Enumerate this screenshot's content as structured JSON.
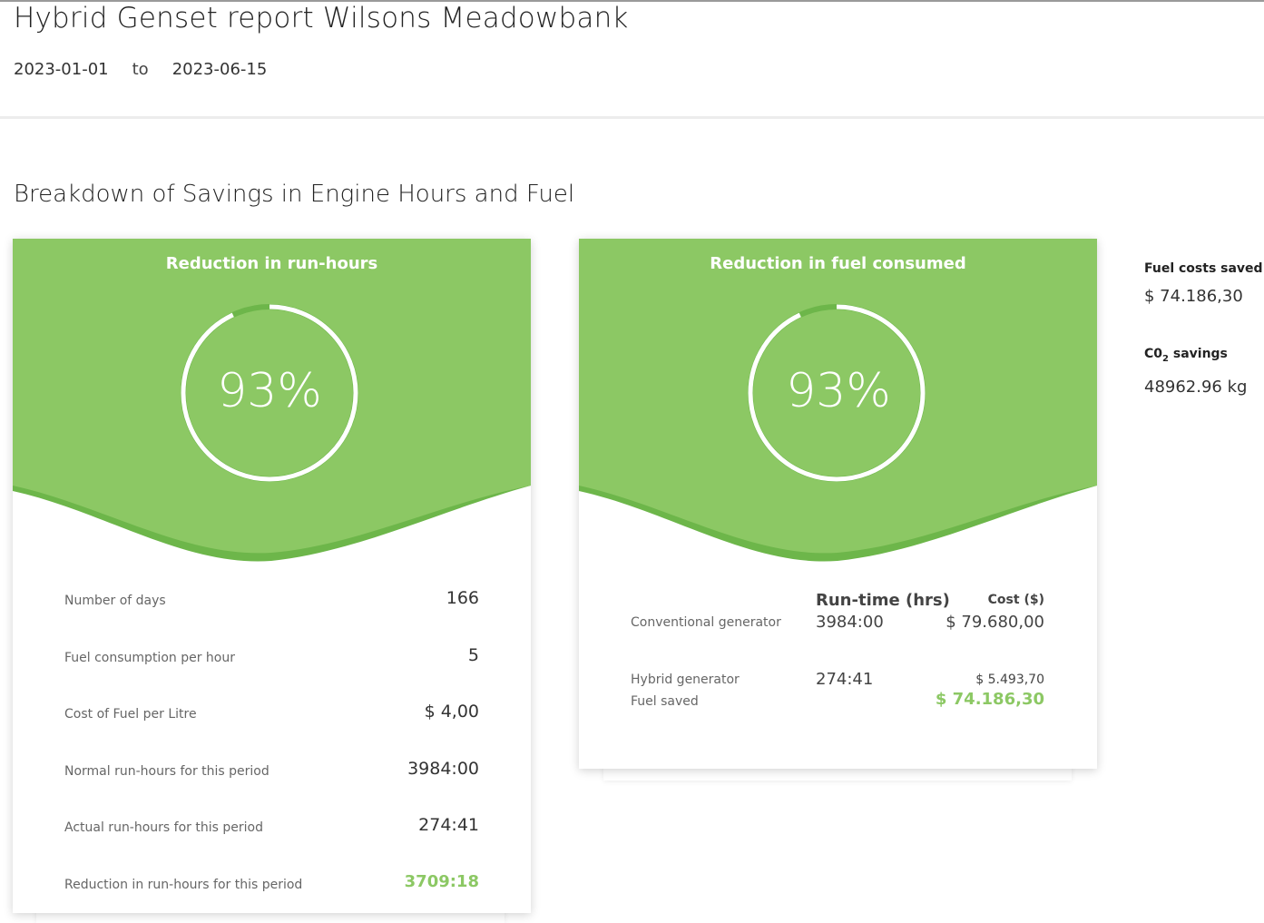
{
  "header": {
    "title": "Hybrid Genset report Wilsons Meadowbank",
    "date_from": "2023-01-01",
    "date_sep": "to",
    "date_to": "2023-06-15"
  },
  "section": {
    "title": "Breakdown of Savings in Engine Hours and Fuel"
  },
  "colors": {
    "accent_green": "#8cc864",
    "dark_green": "#6db64a"
  },
  "run_hours_card": {
    "heading": "Reduction in run-hours",
    "percent": "93%",
    "percent_value": 0.93,
    "rows": [
      {
        "label": "Number of days",
        "value": "166"
      },
      {
        "label": "Fuel consumption per hour",
        "value": "5"
      },
      {
        "label": "Cost of Fuel per Litre",
        "value": "$ 4,00"
      },
      {
        "label": "Normal run-hours for this period",
        "value": "3984:00"
      },
      {
        "label": "Actual run-hours for this period",
        "value": "274:41"
      },
      {
        "label": "Reduction in run-hours for this period",
        "value": "3709:18"
      }
    ]
  },
  "fuel_card": {
    "heading": "Reduction in fuel consumed",
    "percent": "93%",
    "percent_value": 0.93,
    "col_runtime": "Run-time (hrs)",
    "col_cost": "Cost ($)",
    "conventional_label": "Conventional generator",
    "conventional_runtime": "3984:00",
    "conventional_cost": "$ 79.680,00",
    "hybrid_label": "Hybrid generator",
    "hybrid_runtime": "274:41",
    "hybrid_cost": "$ 5.493,70",
    "fuel_saved_label": "Fuel saved",
    "fuel_saved_value": "$ 74.186,30"
  },
  "side": {
    "fuel_costs_label": "Fuel costs saved",
    "fuel_costs_value": "$ 74.186,30",
    "co2_label_prefix": "C0",
    "co2_label_sub": "2",
    "co2_label_suffix": " savings",
    "co2_value": "48962.96 kg"
  }
}
